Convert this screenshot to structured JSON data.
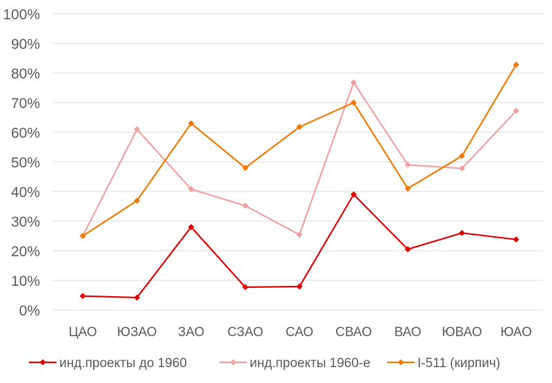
{
  "chart_data": {
    "type": "line",
    "title": "",
    "xlabel": "",
    "ylabel": "",
    "categories": [
      "ЦАО",
      "ЮЗАО",
      "ЗАО",
      "СЗАО",
      "САО",
      "СВАО",
      "ВАО",
      "ЮВАО",
      "ЮАО"
    ],
    "ylim": [
      0,
      100
    ],
    "y_ticks": [
      "0%",
      "10%",
      "20%",
      "30%",
      "40%",
      "50%",
      "60%",
      "70%",
      "80%",
      "90%",
      "100%"
    ],
    "grid": "horizontal",
    "legend_position": "bottom",
    "marker": "diamond",
    "series": [
      {
        "name": "инд.проекты до 1960",
        "color": "#e00000",
        "values": [
          4.7,
          4.2,
          28,
          7.7,
          7.9,
          39,
          20.5,
          26,
          23.8
        ]
      },
      {
        "name": "инд.проекты 1960-е",
        "color": "#f0a0a0",
        "values": [
          25,
          61,
          40.8,
          35.2,
          25.4,
          76.8,
          49,
          47.8,
          67.2
        ]
      },
      {
        "name": "I-511 (кирпич)",
        "color": "#f07800",
        "values": [
          25,
          36.9,
          63,
          48,
          61.8,
          70,
          41,
          52,
          82.8
        ]
      }
    ]
  }
}
